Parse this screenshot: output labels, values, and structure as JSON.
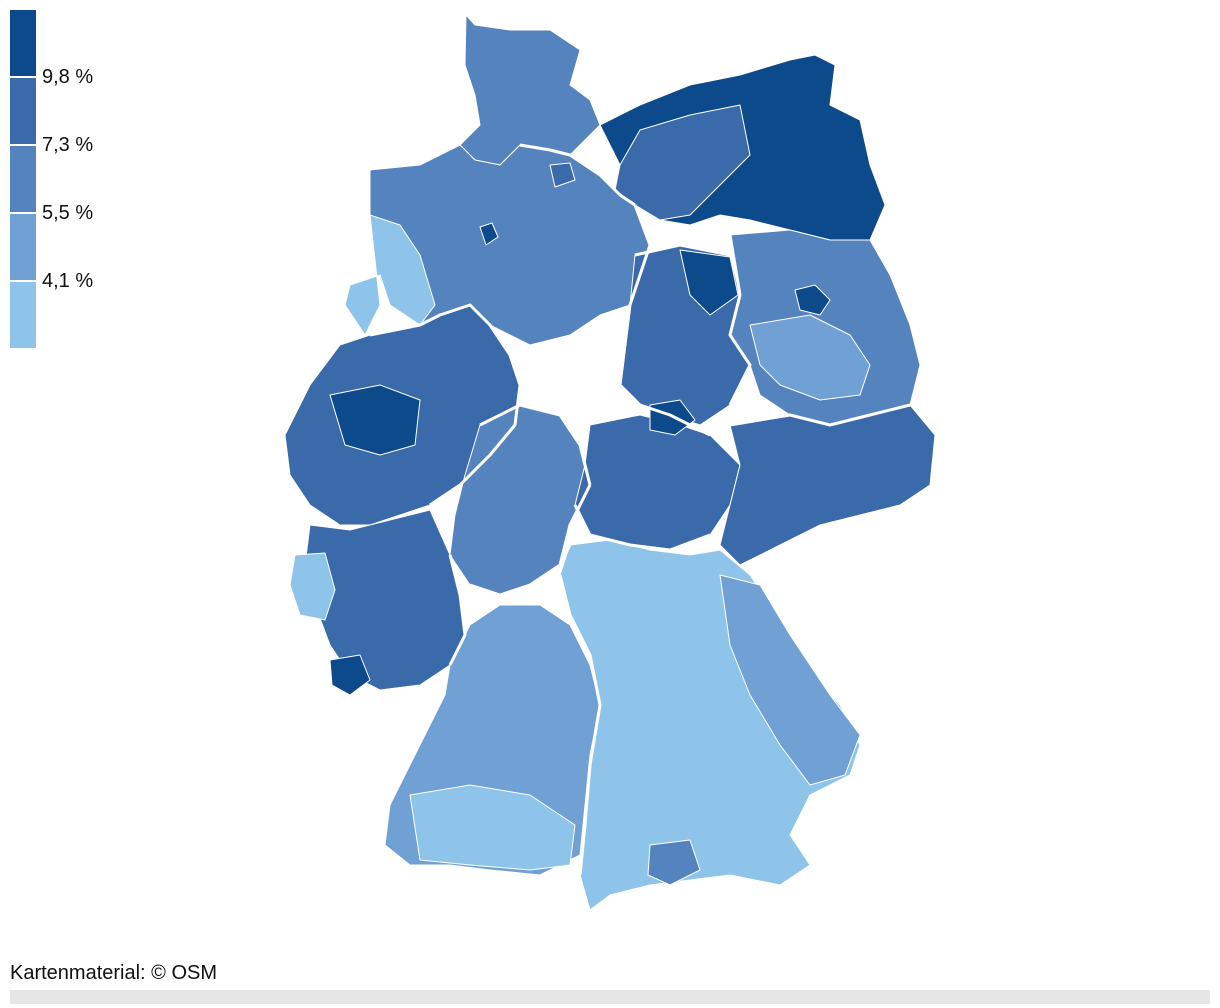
{
  "legend": {
    "colors": [
      "#0d4a8c",
      "#3a6aa9",
      "#5583bd",
      "#71a0d5",
      "#8ec4ea"
    ],
    "labels": [
      "9,8 %",
      "7,3 %",
      "5,5 %",
      "4,1 %"
    ]
  },
  "map": {
    "region_colors": {
      "darkest": "#0d4a8c",
      "dark": "#3a6aa9",
      "mid": "#5583bd",
      "light": "#71a0d5",
      "lightest": "#8ec4ea"
    },
    "border_color": "#ffffff"
  },
  "credit": "Kartenmaterial: © OSM"
}
